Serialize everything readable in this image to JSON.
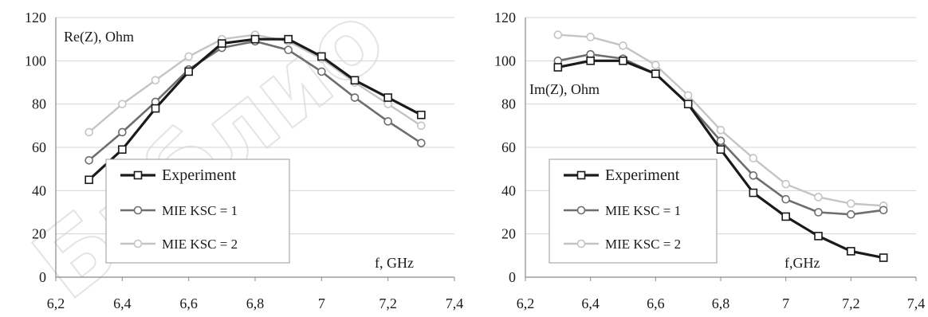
{
  "watermark": "Библио",
  "chart_data": [
    {
      "type": "line",
      "title": "",
      "ylabel_inside": "Re(Z), Ohm",
      "xlabel_inside": "f,  GHz",
      "xlim": [
        6.2,
        7.4
      ],
      "ylim": [
        0,
        120
      ],
      "xticks": [
        "6,2",
        "6,4",
        "6,6",
        "6,8",
        "7",
        "7,2",
        "7,4"
      ],
      "yticks": [
        "0",
        "20",
        "40",
        "60",
        "80",
        "100",
        "120"
      ],
      "grid": true,
      "legend_position": "bottom-left",
      "x": [
        6.3,
        6.4,
        6.5,
        6.6,
        6.7,
        6.8,
        6.9,
        7.0,
        7.1,
        7.2,
        7.3
      ],
      "series": [
        {
          "name": "Experiment",
          "color": "#1a1a1a",
          "values": [
            45,
            59,
            78,
            95,
            108,
            110,
            110,
            102,
            91,
            83,
            75
          ]
        },
        {
          "name": "MIE KSC = 1",
          "color": "#6e6e6e",
          "values": [
            54,
            67,
            81,
            96,
            106,
            109,
            105,
            95,
            83,
            72,
            62
          ]
        },
        {
          "name": "MIE KSC = 2",
          "color": "#c4c4c4",
          "values": [
            67,
            80,
            91,
            102,
            110,
            112,
            109,
            101,
            90,
            80,
            70
          ]
        }
      ]
    },
    {
      "type": "line",
      "title": "",
      "ylabel_inside": "Im(Z),  Ohm",
      "xlabel_inside": "f,GHz",
      "xlim": [
        6.2,
        7.4
      ],
      "ylim": [
        0,
        120
      ],
      "xticks": [
        "6,2",
        "6,4",
        "6,6",
        "6,8",
        "7",
        "7,2",
        "7,4"
      ],
      "yticks": [
        "0",
        "20",
        "40",
        "60",
        "80",
        "100",
        "120"
      ],
      "grid": true,
      "legend_position": "bottom-left",
      "x": [
        6.3,
        6.4,
        6.5,
        6.6,
        6.7,
        6.8,
        6.9,
        7.0,
        7.1,
        7.2,
        7.3
      ],
      "series": [
        {
          "name": "Experiment",
          "color": "#1a1a1a",
          "values": [
            97,
            100,
            100,
            94,
            80,
            59,
            39,
            28,
            19,
            12,
            9
          ]
        },
        {
          "name": "MIE KSC = 1",
          "color": "#6e6e6e",
          "values": [
            100,
            103,
            101,
            94,
            80,
            63,
            47,
            36,
            30,
            29,
            31
          ]
        },
        {
          "name": "MIE KSC = 2",
          "color": "#c4c4c4",
          "values": [
            112,
            111,
            107,
            98,
            84,
            68,
            55,
            43,
            37,
            34,
            33
          ]
        }
      ]
    }
  ]
}
